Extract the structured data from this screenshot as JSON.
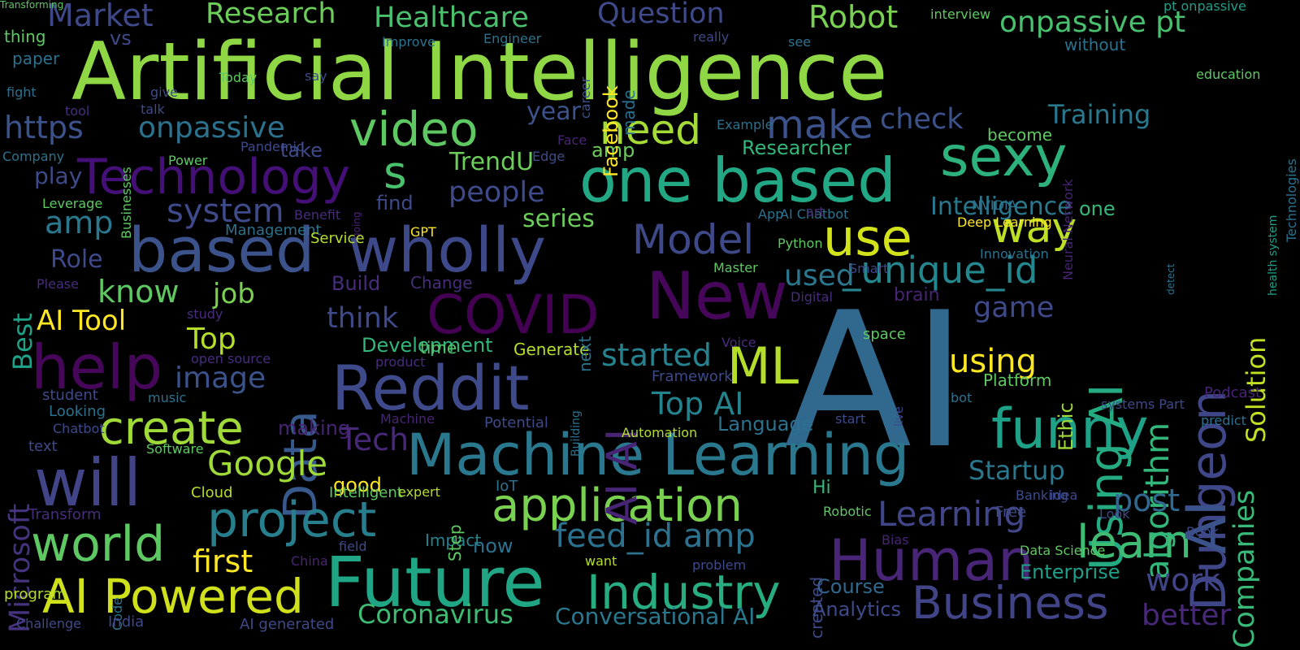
{
  "word_cloud": {
    "background": "#000000",
    "palette": "viridis",
    "words": [
      {
        "text": "Artificial Intelligence",
        "color": "#8fd744"
      },
      {
        "text": "AI",
        "color": "#31688e"
      },
      {
        "text": "New",
        "color": "#46075a"
      },
      {
        "text": "Machine Learning",
        "color": "#2a788e"
      },
      {
        "text": "Future",
        "color": "#21a685"
      },
      {
        "text": "based",
        "color": "#3b528b"
      },
      {
        "text": "wholly",
        "color": "#3e4989"
      },
      {
        "text": "Reddit",
        "color": "#3e4a89"
      },
      {
        "text": "Technology",
        "color": "#440f76"
      },
      {
        "text": "one based",
        "color": "#22a884"
      },
      {
        "text": "sexy",
        "color": "#2db27d"
      },
      {
        "text": "Dungeon",
        "color": "#3f4788"
      },
      {
        "text": "funny",
        "color": "#1fa187"
      },
      {
        "text": "will",
        "color": "#414487"
      },
      {
        "text": "help",
        "color": "#46075a"
      },
      {
        "text": "COVID",
        "color": "#440154"
      },
      {
        "text": "Data",
        "color": "#38598c"
      },
      {
        "text": "Human",
        "color": "#482576"
      },
      {
        "text": "application",
        "color": "#7ad151"
      },
      {
        "text": "AI Powered",
        "color": "#d0e11c"
      },
      {
        "text": "project",
        "color": "#277f8e"
      },
      {
        "text": "Industry",
        "color": "#27ad81"
      },
      {
        "text": "Business",
        "color": "#414487"
      },
      {
        "text": "world",
        "color": "#5ec962"
      },
      {
        "text": "video",
        "color": "#5ec962"
      },
      {
        "text": "create",
        "color": "#a0da39"
      },
      {
        "text": "use",
        "color": "#d2e21b"
      },
      {
        "text": "Using AI",
        "color": "#25ab82"
      },
      {
        "text": "_unique_id",
        "color": "#24878e"
      },
      {
        "text": "AI AI",
        "color": "#482475"
      },
      {
        "text": "ML",
        "color": "#b5de2b"
      },
      {
        "text": "s",
        "color": "#4ac16d"
      },
      {
        "text": "need",
        "color": "#a5db36"
      },
      {
        "text": "make",
        "color": "#3b528b"
      },
      {
        "text": "Model",
        "color": "#3e4989"
      },
      {
        "text": "way",
        "color": "#bddf26"
      },
      {
        "text": "learn",
        "color": "#3fbc73"
      },
      {
        "text": "Google",
        "color": "#a0da39"
      },
      {
        "text": "feed_id amp",
        "color": "#2c728e"
      },
      {
        "text": "Learning",
        "color": "#404688"
      },
      {
        "text": "AI",
        "color": "#3b528b"
      },
      {
        "text": "Companies",
        "color": "#38b977"
      },
      {
        "text": "algorithm",
        "color": "#32b67a"
      },
      {
        "text": "https",
        "color": "#3b528b"
      },
      {
        "text": "onpassive",
        "color": "#2c728e"
      },
      {
        "text": "system",
        "color": "#3e4a89"
      },
      {
        "text": "amp",
        "color": "#2a788e"
      },
      {
        "text": "Top AI",
        "color": "#25838e"
      },
      {
        "text": "started",
        "color": "#26828e"
      },
      {
        "text": "image",
        "color": "#3b528b"
      },
      {
        "text": "using",
        "color": "#fde725"
      },
      {
        "text": "Coronavirus",
        "color": "#3fbc73"
      },
      {
        "text": "Conversational AI",
        "color": "#2a788e"
      },
      {
        "text": "Startup",
        "color": "#2a788e"
      },
      {
        "text": "post",
        "color": "#31688e"
      },
      {
        "text": "work",
        "color": "#414487"
      },
      {
        "text": "better",
        "color": "#482878"
      },
      {
        "text": "game",
        "color": "#3e4a89"
      },
      {
        "text": "Solution",
        "color": "#c2df23"
      },
      {
        "text": "Research",
        "color": "#6ccd5a"
      },
      {
        "text": "Healthcare",
        "color": "#4ac16d"
      },
      {
        "text": "Question",
        "color": "#3e4a89"
      },
      {
        "text": "Robot",
        "color": "#7ad151"
      },
      {
        "text": "Market",
        "color": "#3e4989"
      },
      {
        "text": "onpassive pt",
        "color": "#48c16e"
      },
      {
        "text": "Training",
        "color": "#2a788e"
      },
      {
        "text": "check",
        "color": "#3b528b"
      },
      {
        "text": "year",
        "color": "#3b528b"
      },
      {
        "text": "people",
        "color": "#3e4a89"
      },
      {
        "text": "TrendU",
        "color": "#6ccd5a"
      },
      {
        "text": "series",
        "color": "#6ccd5a"
      },
      {
        "text": "think",
        "color": "#3e4989"
      },
      {
        "text": "know",
        "color": "#5ec962"
      },
      {
        "text": "job",
        "color": "#7ad151"
      },
      {
        "text": "AI Tool",
        "color": "#fde725"
      },
      {
        "text": "Role",
        "color": "#3e4989"
      },
      {
        "text": "Best",
        "color": "#1fa187"
      },
      {
        "text": "Microsoft",
        "color": "#46337e"
      },
      {
        "text": "first",
        "color": "#fde725"
      },
      {
        "text": "Tech",
        "color": "#482878"
      },
      {
        "text": "Top",
        "color": "#b5de2b"
      },
      {
        "text": "used",
        "color": "#2a788e"
      },
      {
        "text": "amp",
        "color": "#6ccd5a"
      },
      {
        "text": "Researcher",
        "color": "#32b67a"
      },
      {
        "text": "Intelligence",
        "color": "#2a788e"
      },
      {
        "text": "one",
        "color": "#35b779"
      },
      {
        "text": "Language",
        "color": "#2c728e"
      },
      {
        "text": "Ethic",
        "color": "#a0da39"
      },
      {
        "text": "Enterprise",
        "color": "#1f9f88"
      },
      {
        "text": "Analytics",
        "color": "#3e4a89"
      },
      {
        "text": "Course",
        "color": "#31688e"
      },
      {
        "text": "making",
        "color": "#482475"
      },
      {
        "text": "good",
        "color": "#fde725"
      },
      {
        "text": "Build",
        "color": "#472d7b"
      },
      {
        "text": "Change",
        "color": "#472d7b"
      },
      {
        "text": "Development",
        "color": "#32b67a"
      },
      {
        "text": "time",
        "color": "#52c569"
      },
      {
        "text": "Generate",
        "color": "#b5de2b"
      },
      {
        "text": "Hi",
        "color": "#35b779"
      },
      {
        "text": "Platform",
        "color": "#5ec962"
      },
      {
        "text": "now",
        "color": "#2c728e"
      },
      {
        "text": "Impact",
        "color": "#26828e"
      },
      {
        "text": "next",
        "color": "#2c728e"
      },
      {
        "text": "Facebook",
        "color": "#fde725"
      },
      {
        "text": "made",
        "color": "#2c728e"
      },
      {
        "text": "career",
        "color": "#3b528b"
      },
      {
        "text": "find",
        "color": "#3e4a89"
      },
      {
        "text": "take",
        "color": "#3e4a89"
      },
      {
        "text": "play",
        "color": "#3e4a89"
      },
      {
        "text": "vs",
        "color": "#3e4a89"
      },
      {
        "text": "thing",
        "color": "#5ec962"
      },
      {
        "text": "paper",
        "color": "#2c728e"
      },
      {
        "text": "fight",
        "color": "#2c728e"
      },
      {
        "text": "Company",
        "color": "#2c728e"
      },
      {
        "text": "Leverage",
        "color": "#5ec962"
      },
      {
        "text": "Businesses",
        "color": "#5ec962"
      },
      {
        "text": "Power",
        "color": "#5ec962"
      },
      {
        "text": "Pandemic",
        "color": "#3e4a89"
      },
      {
        "text": "Face",
        "color": "#482475"
      },
      {
        "text": "Edge",
        "color": "#3e4a89"
      },
      {
        "text": "going",
        "color": "#482475"
      },
      {
        "text": "Management",
        "color": "#2c728e"
      },
      {
        "text": "Benefit",
        "color": "#472d7b"
      },
      {
        "text": "Service",
        "color": "#b5de2b"
      },
      {
        "text": "GPT",
        "color": "#fde725"
      },
      {
        "text": "Master",
        "color": "#5ec962"
      },
      {
        "text": "Python",
        "color": "#5ec962"
      },
      {
        "text": "Smart",
        "color": "#3e4a89"
      },
      {
        "text": "brain",
        "color": "#482475"
      },
      {
        "text": "Digital",
        "color": "#472d7b"
      },
      {
        "text": "space",
        "color": "#5ec962"
      },
      {
        "text": "Voice",
        "color": "#472d7b"
      },
      {
        "text": "AI Chatbot",
        "color": "#2c728e"
      },
      {
        "text": "App",
        "color": "#2c728e"
      },
      {
        "text": "art",
        "color": "#472d7b"
      },
      {
        "text": "Deep Learning",
        "color": "#fde725"
      },
      {
        "text": "NVIDIA",
        "color": "#2c728e"
      },
      {
        "text": "Innovation",
        "color": "#2c728e"
      },
      {
        "text": "become",
        "color": "#5ec962"
      },
      {
        "text": "Neural Network",
        "color": "#482475"
      },
      {
        "text": "detect",
        "color": "#2c728e"
      },
      {
        "text": "Technologies",
        "color": "#2c728e"
      },
      {
        "text": "health system",
        "color": "#1f9f88"
      },
      {
        "text": "pt onpassive",
        "color": "#1f9f88"
      },
      {
        "text": "interview",
        "color": "#5ec962"
      },
      {
        "text": "without",
        "color": "#2c728e"
      },
      {
        "text": "education",
        "color": "#5ec962"
      },
      {
        "text": "see",
        "color": "#2c728e"
      },
      {
        "text": "really",
        "color": "#3e4a89"
      },
      {
        "text": "Engineer",
        "color": "#2c728e"
      },
      {
        "text": "Improve",
        "color": "#2c728e"
      },
      {
        "text": "Example",
        "color": "#2c728e"
      },
      {
        "text": "Today",
        "color": "#5ec962"
      },
      {
        "text": "say",
        "color": "#3e4a89"
      },
      {
        "text": "give",
        "color": "#3e4a89"
      },
      {
        "text": "talk",
        "color": "#3e4a89"
      },
      {
        "text": "tool",
        "color": "#472d7b"
      },
      {
        "text": "Please",
        "color": "#472d7b"
      },
      {
        "text": "study",
        "color": "#472d7b"
      },
      {
        "text": "open source",
        "color": "#472d7b"
      },
      {
        "text": "product",
        "color": "#472d7b"
      },
      {
        "text": "student",
        "color": "#3e4a89"
      },
      {
        "text": "Looking",
        "color": "#2c728e"
      },
      {
        "text": "Chatbot",
        "color": "#3e4a89"
      },
      {
        "text": "text",
        "color": "#3e4a89"
      },
      {
        "text": "music",
        "color": "#2c728e"
      },
      {
        "text": "Software",
        "color": "#5ec962"
      },
      {
        "text": "Machine",
        "color": "#482475"
      },
      {
        "text": "Potential",
        "color": "#3e4a89"
      },
      {
        "text": "Automation",
        "color": "#b5de2b"
      },
      {
        "text": "Framework",
        "color": "#3e4a89"
      },
      {
        "text": "Building",
        "color": "#2c728e"
      },
      {
        "text": "live",
        "color": "#3e4a89"
      },
      {
        "text": "start",
        "color": "#3e4a89"
      },
      {
        "text": "bot",
        "color": "#2c728e"
      },
      {
        "text": "systems Part",
        "color": "#3e4a89"
      },
      {
        "text": "Podcast",
        "color": "#482475"
      },
      {
        "text": "predict",
        "color": "#2c728e"
      },
      {
        "text": "Cloud",
        "color": "#b5de2b"
      },
      {
        "text": "Intelligent",
        "color": "#5ec962"
      },
      {
        "text": "expert",
        "color": "#b5de2b"
      },
      {
        "text": "Step",
        "color": "#5ec962"
      },
      {
        "text": "IoT",
        "color": "#2c728e"
      },
      {
        "text": "Robotic",
        "color": "#5ec962"
      },
      {
        "text": "Banking",
        "color": "#3e4a89"
      },
      {
        "text": "idea",
        "color": "#3e4a89"
      },
      {
        "text": "Free",
        "color": "#3e4a89"
      },
      {
        "text": "Look",
        "color": "#3e4a89"
      },
      {
        "text": "Book",
        "color": "#3e4a89"
      },
      {
        "text": "Bias",
        "color": "#482475"
      },
      {
        "text": "Data Science",
        "color": "#5ec962"
      },
      {
        "text": "Transform",
        "color": "#472d7b"
      },
      {
        "text": "program",
        "color": "#b5de2b"
      },
      {
        "text": "Code",
        "color": "#2c728e"
      },
      {
        "text": "China",
        "color": "#482475"
      },
      {
        "text": "field",
        "color": "#3e4a89"
      },
      {
        "text": "created",
        "color": "#3e4a89"
      },
      {
        "text": "want",
        "color": "#b5de2b"
      },
      {
        "text": "problem",
        "color": "#3e4a89"
      },
      {
        "text": "Challenge",
        "color": "#3e4a89"
      },
      {
        "text": "India",
        "color": "#3e4a89"
      },
      {
        "text": "AI generated",
        "color": "#3e4a89"
      },
      {
        "text": "Transforming",
        "color": "#5ec962"
      }
    ]
  }
}
